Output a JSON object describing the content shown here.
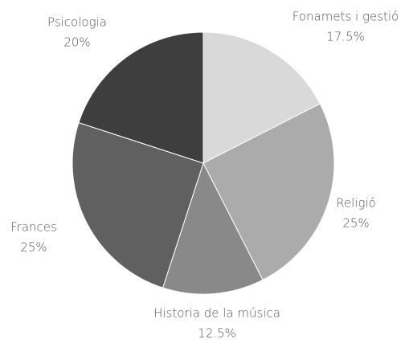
{
  "chart_data": {
    "type": "pie",
    "categories": [
      "Fonamets i gestió",
      "Religió",
      "Historia de la música",
      "Frances",
      "Psicologia"
    ],
    "values": [
      17.5,
      25,
      12.5,
      25,
      20
    ],
    "value_labels": [
      "17.5%",
      "25%",
      "12.5%",
      "25%",
      "20%"
    ],
    "colors": [
      "#d9d9d9",
      "#ababab",
      "#898989",
      "#606060",
      "#3e3e3e"
    ]
  }
}
